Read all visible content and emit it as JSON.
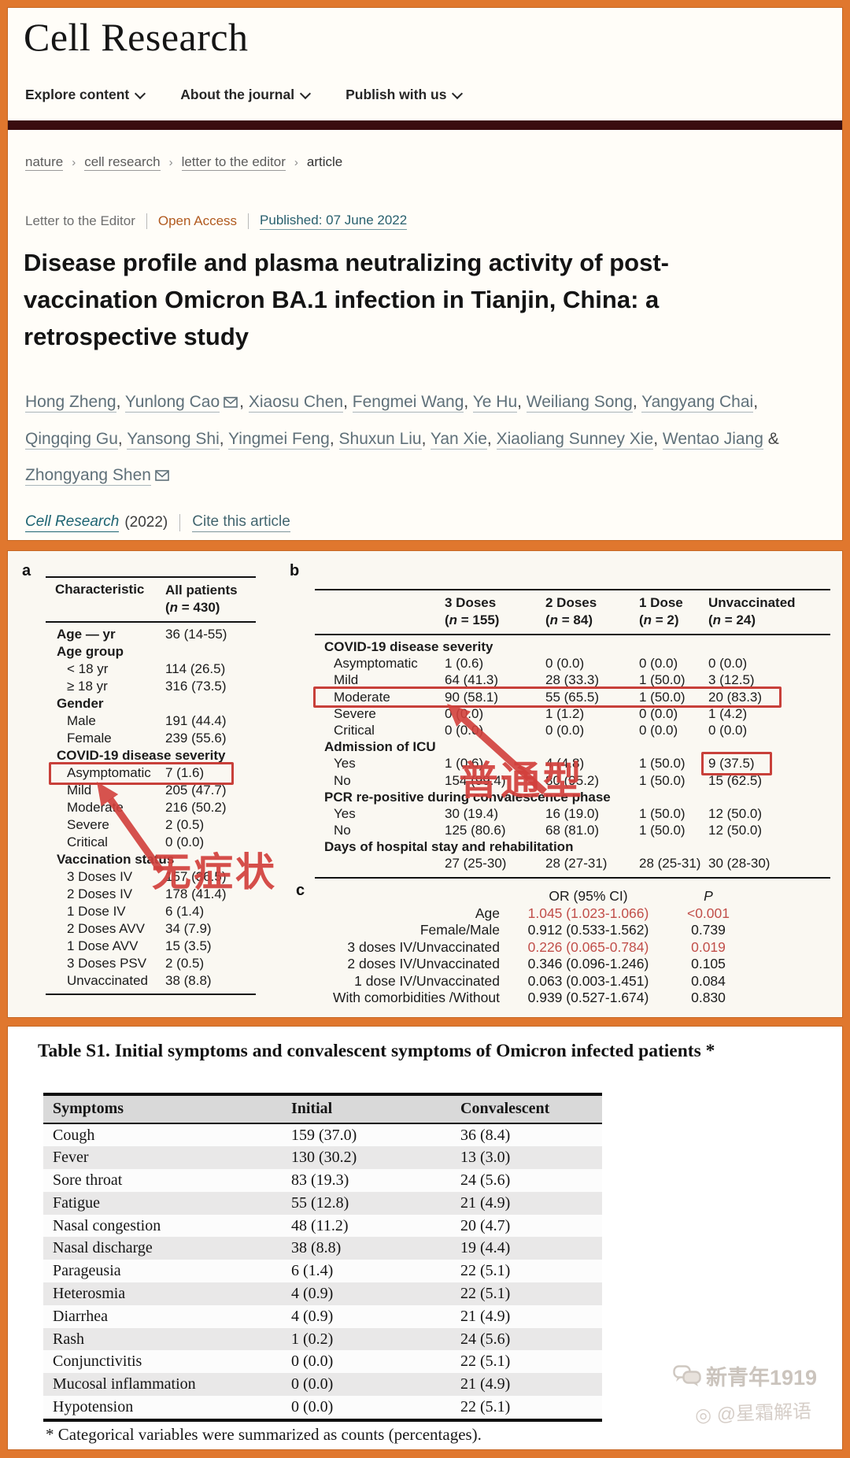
{
  "colors": {
    "frame_orange": "#E0772E",
    "maroon_bar": "#3A0D0F",
    "annotation_red": "#D2403C",
    "link_teal": "#29606E",
    "open_access": "#B15A1F",
    "red_value": "#C14F4A"
  },
  "header": {
    "logo": "Cell Research",
    "nav": [
      {
        "label": "Explore content"
      },
      {
        "label": "About the journal"
      },
      {
        "label": "Publish with us"
      }
    ]
  },
  "breadcrumb": {
    "separator": "›",
    "items": [
      "nature",
      "cell research",
      "letter to the editor",
      "article"
    ]
  },
  "article": {
    "type": "Letter to the Editor",
    "access": "Open Access",
    "published": "Published: 07 June 2022",
    "title": "Disease profile and plasma neutralizing activity of post-vaccination Omicron BA.1 infection in Tianjin, China: a retrospective study",
    "authors": [
      {
        "name": "Hong Zheng",
        "email": false
      },
      {
        "name": "Yunlong Cao",
        "email": true
      },
      {
        "name": "Xiaosu Chen",
        "email": false
      },
      {
        "name": "Fengmei Wang",
        "email": false
      },
      {
        "name": "Ye Hu",
        "email": false
      },
      {
        "name": "Weiliang Song",
        "email": false
      },
      {
        "name": "Yangyang Chai",
        "email": false
      },
      {
        "name": "Qingqing Gu",
        "email": false
      },
      {
        "name": "Yansong Shi",
        "email": false
      },
      {
        "name": "Yingmei Feng",
        "email": false
      },
      {
        "name": "Shuxun Liu",
        "email": false
      },
      {
        "name": "Yan Xie",
        "email": false
      },
      {
        "name": "Xiaoliang Sunney Xie",
        "email": false
      },
      {
        "name": "Wentao Jiang",
        "email": false
      },
      {
        "name": "Zhongyang Shen",
        "email": true
      }
    ],
    "author_separator": ", ",
    "author_amp": " & ",
    "citation": {
      "journal": "Cell Research",
      "year": "(2022)",
      "cite": "Cite this article"
    }
  },
  "figure": {
    "label_a": "a",
    "label_b": "b",
    "label_c": "c",
    "table_a": {
      "header": {
        "col1": "Characteristic",
        "col2": "All patients",
        "col2n": "(n = 430)"
      },
      "rows": [
        {
          "label": "Age — yr",
          "value": "36 (14-55)",
          "style": "group"
        },
        {
          "label": "Age group",
          "value": "",
          "style": "group"
        },
        {
          "label": "< 18 yr",
          "value": "114 (26.5)",
          "style": "sub"
        },
        {
          "label": "≥ 18 yr",
          "value": "316 (73.5)",
          "style": "sub"
        },
        {
          "label": "Gender",
          "value": "",
          "style": "group"
        },
        {
          "label": "Male",
          "value": "191 (44.4)",
          "style": "sub"
        },
        {
          "label": "Female",
          "value": "239 (55.6)",
          "style": "sub"
        },
        {
          "label": "COVID-19 disease severity",
          "value": "",
          "style": "group"
        },
        {
          "label": "Asymptomatic",
          "value": "7 (1.6)",
          "style": "sub",
          "boxed": true
        },
        {
          "label": "Mild",
          "value": "205 (47.7)",
          "style": "sub"
        },
        {
          "label": "Moderate",
          "value": "216 (50.2)",
          "style": "sub"
        },
        {
          "label": "Severe",
          "value": "2 (0.5)",
          "style": "sub"
        },
        {
          "label": "Critical",
          "value": "0 (0.0)",
          "style": "sub"
        },
        {
          "label": "Vaccination status",
          "value": "",
          "style": "group"
        },
        {
          "label": "3 Doses IV",
          "value": "157 (36.5)",
          "style": "sub"
        },
        {
          "label": "2 Doses IV",
          "value": "178 (41.4)",
          "style": "sub"
        },
        {
          "label": "1 Dose IV",
          "value": "6 (1.4)",
          "style": "sub"
        },
        {
          "label": "2 Doses AVV",
          "value": "34 (7.9)",
          "style": "sub"
        },
        {
          "label": "1 Dose AVV",
          "value": "15 (3.5)",
          "style": "sub"
        },
        {
          "label": "3 Doses PSV",
          "value": "2 (0.5)",
          "style": "sub"
        },
        {
          "label": "Unvaccinated",
          "value": "38 (8.8)",
          "style": "sub"
        }
      ]
    },
    "table_b": {
      "columns": [
        {
          "line1": "3 Doses",
          "line2": "(n = 155)"
        },
        {
          "line1": "2 Doses",
          "line2": "(n = 84)"
        },
        {
          "line1": "1 Dose",
          "line2": "(n = 2)"
        },
        {
          "line1": "Unvaccinated",
          "line2": "(n = 24)"
        }
      ],
      "rows": [
        {
          "label": "COVID-19 disease severity",
          "style": "group",
          "values": [
            "",
            "",
            "",
            ""
          ]
        },
        {
          "label": "Asymptomatic",
          "style": "sub",
          "values": [
            "1 (0.6)",
            "0 (0.0)",
            "0 (0.0)",
            "0 (0.0)"
          ]
        },
        {
          "label": "Mild",
          "style": "sub",
          "values": [
            "64 (41.3)",
            "28 (33.3)",
            "1 (50.0)",
            "3 (12.5)"
          ]
        },
        {
          "label": "Moderate",
          "style": "sub",
          "values": [
            "90 (58.1)",
            "55 (65.5)",
            "1 (50.0)",
            "20 (83.3)"
          ],
          "boxed_row": true
        },
        {
          "label": "Severe",
          "style": "sub",
          "values": [
            "0 (0.0)",
            "1 (1.2)",
            "0 (0.0)",
            "1 (4.2)"
          ]
        },
        {
          "label": "Critical",
          "style": "sub",
          "values": [
            "0 (0.0)",
            "0 (0.0)",
            "0 (0.0)",
            "0 (0.0)"
          ]
        },
        {
          "label": "Admission of ICU",
          "style": "group",
          "values": [
            "",
            "",
            "",
            ""
          ]
        },
        {
          "label": "Yes",
          "style": "sub",
          "values": [
            "1 (0.6)",
            "4 (4.8)",
            "1 (50.0)",
            "9 (37.5)"
          ],
          "boxed_cell": 3
        },
        {
          "label": "No",
          "style": "sub",
          "values": [
            "154 (99.4)",
            "80 (95.2)",
            "1 (50.0)",
            "15 (62.5)"
          ]
        },
        {
          "label": "PCR re-positive during convalescence phase",
          "style": "group",
          "values": [
            "",
            "",
            "",
            ""
          ]
        },
        {
          "label": "Yes",
          "style": "sub",
          "values": [
            "30 (19.4)",
            "16 (19.0)",
            "1 (50.0)",
            "12 (50.0)"
          ]
        },
        {
          "label": "No",
          "style": "sub",
          "values": [
            "125 (80.6)",
            "68 (81.0)",
            "1 (50.0)",
            "12 (50.0)"
          ]
        },
        {
          "label": "Days of hospital stay and rehabilitation",
          "style": "group",
          "values": [
            "",
            "",
            "",
            ""
          ]
        },
        {
          "label": "",
          "style": "sub",
          "values": [
            "27 (25-30)",
            "28 (27-31)",
            "28 (25-31)",
            "30 (28-30)"
          ]
        }
      ]
    },
    "table_c": {
      "header": {
        "or": "OR (95% CI)",
        "p": "P"
      },
      "rows": [
        {
          "label": "Age",
          "or": "1.045 (1.023-1.066)",
          "p": "<0.001",
          "highlight": true
        },
        {
          "label": "Female/Male",
          "or": "0.912 (0.533-1.562)",
          "p": "0.739",
          "highlight": false
        },
        {
          "label": "3 doses IV/Unvaccinated",
          "or": "0.226 (0.065-0.784)",
          "p": "0.019",
          "highlight": true
        },
        {
          "label": "2 doses IV/Unvaccinated",
          "or": "0.346 (0.096-1.246)",
          "p": "0.105",
          "highlight": false
        },
        {
          "label": "1 dose IV/Unvaccinated",
          "or": "0.063 (0.003-1.451)",
          "p": "0.084",
          "highlight": false
        },
        {
          "label": "With comorbidities /Without",
          "or": "0.939 (0.527-1.674)",
          "p": "0.830",
          "highlight": false
        }
      ]
    },
    "annotations": {
      "asymptomatic": "无症状",
      "moderate": "普通型"
    }
  },
  "table_s1": {
    "title": "Table S1. Initial symptoms and convalescent symptoms of Omicron infected patients *",
    "headers": [
      "Symptoms",
      "Initial",
      "Convalescent"
    ],
    "rows": [
      [
        "Cough",
        "159 (37.0)",
        "36 (8.4)"
      ],
      [
        "Fever",
        "130 (30.2)",
        "13 (3.0)"
      ],
      [
        "Sore throat",
        "83 (19.3)",
        "24 (5.6)"
      ],
      [
        "Fatigue",
        "55 (12.8)",
        "21 (4.9)"
      ],
      [
        "Nasal congestion",
        "48 (11.2)",
        "20 (4.7)"
      ],
      [
        "Nasal discharge",
        "38 (8.8)",
        "19 (4.4)"
      ],
      [
        "Parageusia",
        "6 (1.4)",
        "22 (5.1)"
      ],
      [
        "Heterosmia",
        "4 (0.9)",
        "22 (5.1)"
      ],
      [
        "Diarrhea",
        "4 (0.9)",
        "21 (4.9)"
      ],
      [
        "Rash",
        "1 (0.2)",
        "24 (5.6)"
      ],
      [
        "Conjunctivitis",
        "0 (0.0)",
        "22 (5.1)"
      ],
      [
        "Mucosal inflammation",
        "0 (0.0)",
        "21 (4.9)"
      ],
      [
        "Hypotension",
        "0 (0.0)",
        "22 (5.1)"
      ]
    ],
    "footnote": "* Categorical variables were summarized as counts (percentages)."
  },
  "watermark": {
    "line1": "新青年1919",
    "line2": "@星霜解语"
  }
}
